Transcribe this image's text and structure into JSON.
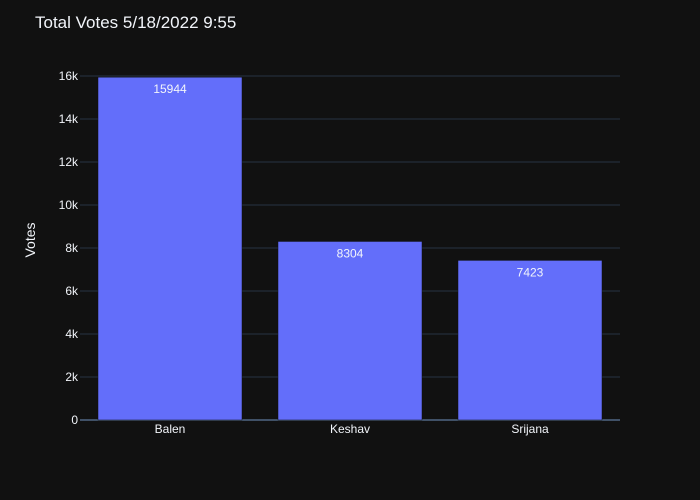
{
  "chart_data": {
    "type": "bar",
    "title": "Total Votes 5/18/2022 9:55",
    "xlabel": "",
    "ylabel": "Votes",
    "categories": [
      "Balen",
      "Keshav",
      "Srijana"
    ],
    "values": [
      15944,
      8304,
      7423
    ],
    "data_labels": [
      "15944",
      "8304",
      "7423"
    ],
    "ylim": [
      0,
      16000
    ],
    "yticks": [
      0,
      2000,
      4000,
      6000,
      8000,
      10000,
      12000,
      14000,
      16000
    ],
    "ytick_labels": [
      "0",
      "2k",
      "4k",
      "6k",
      "8k",
      "10k",
      "12k",
      "14k",
      "16k"
    ],
    "grid": true,
    "legend": "none",
    "colors": {
      "background": "#111111",
      "bar": "#636efa",
      "grid": "#283442",
      "text": "#f2f5fa"
    }
  }
}
